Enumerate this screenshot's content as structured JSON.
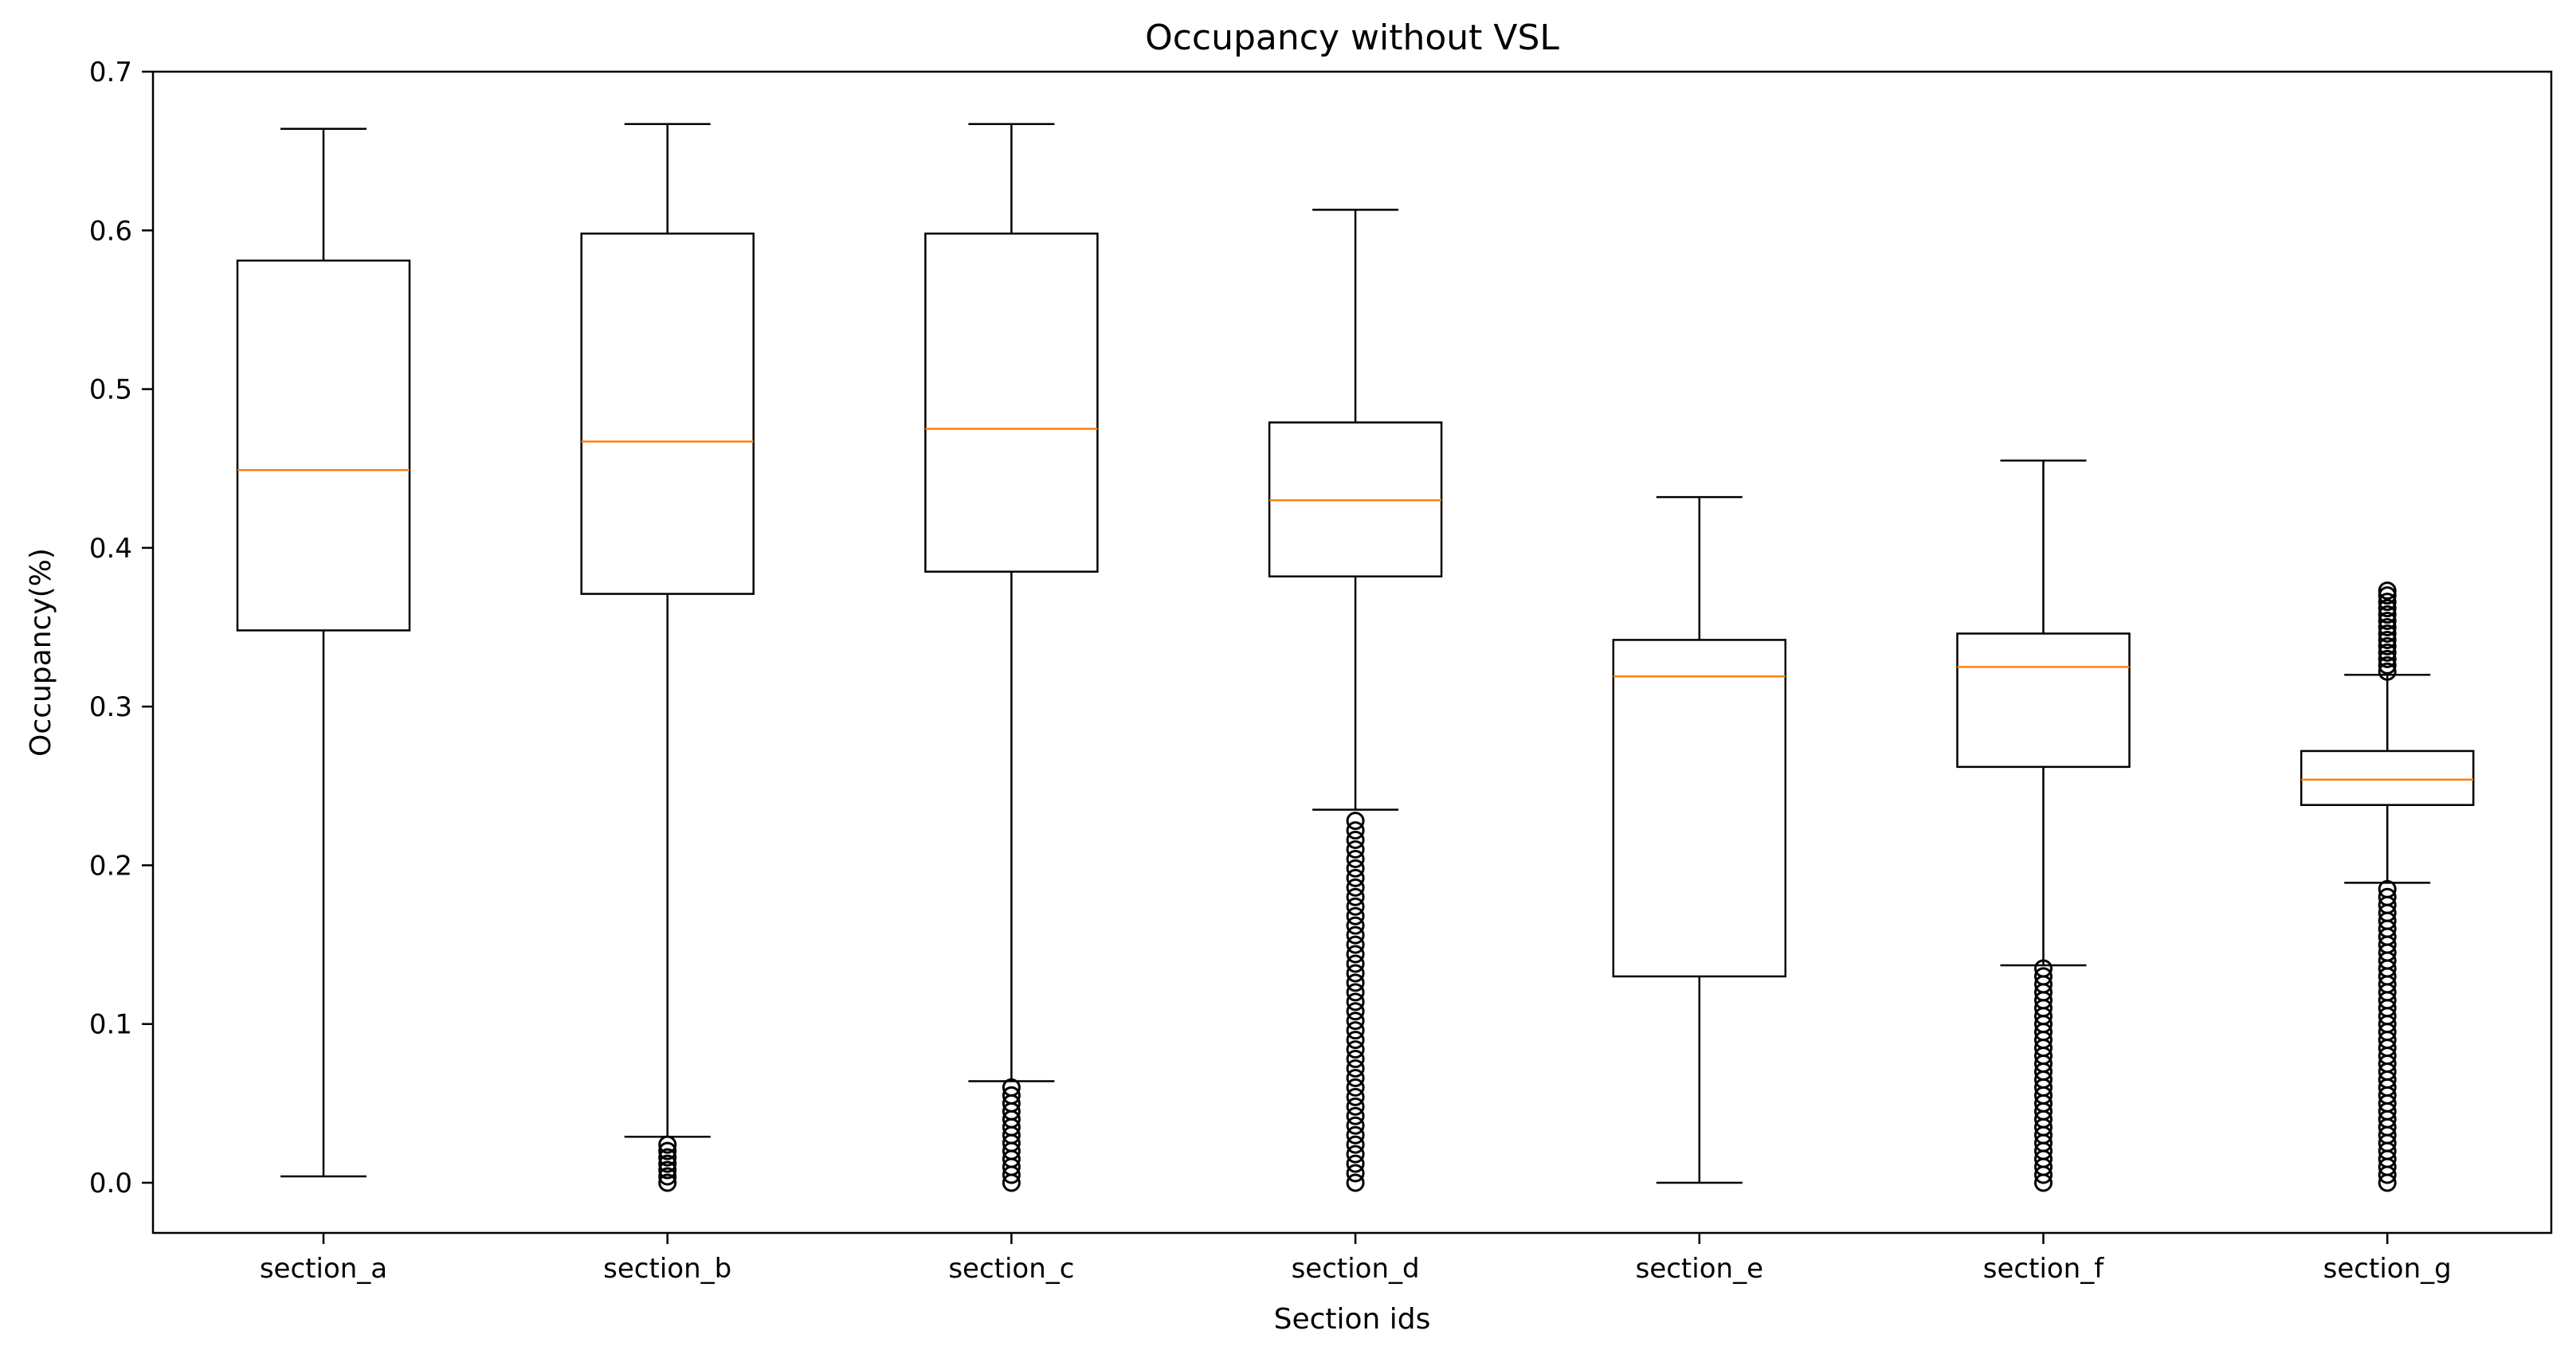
{
  "chart_data": {
    "type": "boxplot",
    "title": "Occupancy without VSL",
    "xlabel": "Section ids",
    "ylabel": "Occupancy(%)",
    "ylim": [
      -0.032,
      0.7
    ],
    "yticks": [
      0.0,
      0.1,
      0.2,
      0.3,
      0.4,
      0.5,
      0.6,
      0.7
    ],
    "ytick_labels": [
      "0.0",
      "0.1",
      "0.2",
      "0.3",
      "0.4",
      "0.5",
      "0.6",
      "0.7"
    ],
    "categories": [
      "section_a",
      "section_b",
      "section_c",
      "section_d",
      "section_e",
      "section_f",
      "section_g"
    ],
    "boxes": [
      {
        "name": "section_a",
        "whisker_low": 0.004,
        "q1": 0.348,
        "median": 0.449,
        "q3": 0.581,
        "whisker_high": 0.664,
        "outliers": []
      },
      {
        "name": "section_b",
        "whisker_low": 0.029,
        "q1": 0.371,
        "median": 0.467,
        "q3": 0.598,
        "whisker_high": 0.667,
        "outliers": [
          0.0,
          0.004,
          0.008,
          0.012,
          0.016,
          0.02,
          0.024
        ]
      },
      {
        "name": "section_c",
        "whisker_low": 0.064,
        "q1": 0.385,
        "median": 0.475,
        "q3": 0.598,
        "whisker_high": 0.667,
        "outliers": [
          0.0,
          0.005,
          0.01,
          0.015,
          0.02,
          0.025,
          0.03,
          0.035,
          0.04,
          0.045,
          0.05,
          0.055,
          0.06
        ]
      },
      {
        "name": "section_d",
        "whisker_low": 0.235,
        "q1": 0.382,
        "median": 0.43,
        "q3": 0.479,
        "whisker_high": 0.613,
        "outliers": [
          0.0,
          0.006,
          0.012,
          0.018,
          0.024,
          0.03,
          0.036,
          0.042,
          0.048,
          0.054,
          0.06,
          0.066,
          0.072,
          0.078,
          0.084,
          0.09,
          0.096,
          0.102,
          0.108,
          0.114,
          0.12,
          0.126,
          0.132,
          0.138,
          0.144,
          0.15,
          0.156,
          0.162,
          0.168,
          0.174,
          0.18,
          0.186,
          0.192,
          0.198,
          0.204,
          0.21,
          0.216,
          0.222,
          0.228
        ]
      },
      {
        "name": "section_e",
        "whisker_low": 0.0,
        "q1": 0.13,
        "median": 0.319,
        "q3": 0.342,
        "whisker_high": 0.432,
        "outliers": []
      },
      {
        "name": "section_f",
        "whisker_low": 0.137,
        "q1": 0.262,
        "median": 0.325,
        "q3": 0.346,
        "whisker_high": 0.455,
        "outliers": [
          0.0,
          0.005,
          0.01,
          0.015,
          0.02,
          0.025,
          0.03,
          0.035,
          0.04,
          0.045,
          0.05,
          0.055,
          0.06,
          0.065,
          0.07,
          0.075,
          0.08,
          0.085,
          0.09,
          0.095,
          0.1,
          0.105,
          0.11,
          0.115,
          0.12,
          0.125,
          0.13,
          0.135
        ]
      },
      {
        "name": "section_g",
        "whisker_low": 0.189,
        "q1": 0.238,
        "median": 0.254,
        "q3": 0.272,
        "whisker_high": 0.32,
        "outliers": [
          0.0,
          0.005,
          0.01,
          0.015,
          0.02,
          0.025,
          0.03,
          0.035,
          0.04,
          0.045,
          0.05,
          0.055,
          0.06,
          0.065,
          0.07,
          0.075,
          0.08,
          0.085,
          0.09,
          0.095,
          0.1,
          0.105,
          0.11,
          0.115,
          0.12,
          0.125,
          0.13,
          0.135,
          0.14,
          0.145,
          0.15,
          0.155,
          0.16,
          0.165,
          0.17,
          0.175,
          0.18,
          0.185,
          0.322,
          0.326,
          0.33,
          0.334,
          0.338,
          0.342,
          0.346,
          0.35,
          0.354,
          0.358,
          0.362,
          0.366,
          0.37,
          0.373
        ]
      }
    ],
    "colors": {
      "box": "#000000",
      "median": "#ff7f0e",
      "background": "#ffffff"
    }
  }
}
